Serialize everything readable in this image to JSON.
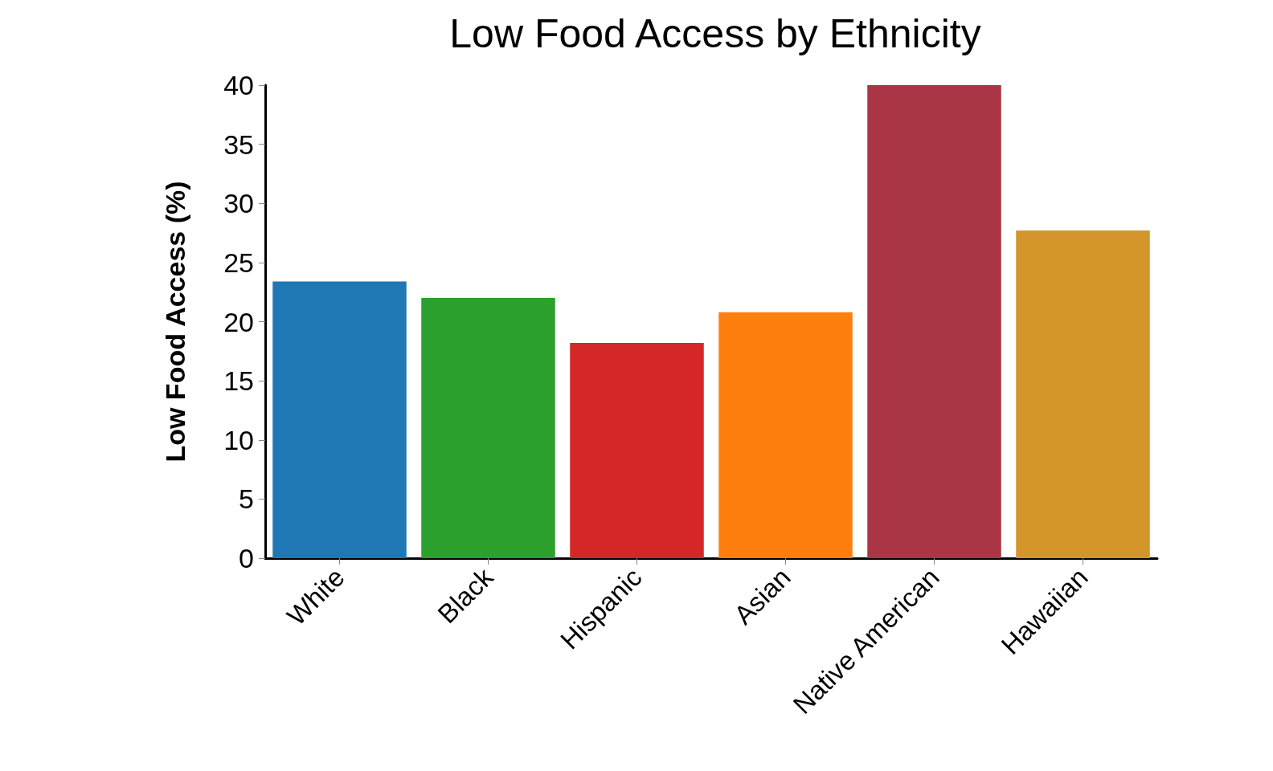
{
  "chart_data": {
    "type": "bar",
    "title": "Low Food Access by Ethnicity",
    "ylabel": "Low Food Access (%)",
    "categories": [
      "White",
      "Black",
      "Hispanic",
      "Asian",
      "Native American",
      "Hawaiian"
    ],
    "values": [
      23.4,
      22.0,
      18.2,
      20.8,
      40,
      27.7
    ],
    "colors": [
      "#1f77b4",
      "#2ca02c",
      "#d62728",
      "#ff7f0e",
      "#a93545",
      "#d4952a"
    ],
    "ylim": [
      0,
      40
    ],
    "yticks": [
      0,
      5,
      10,
      15,
      20,
      25,
      30,
      35,
      40
    ],
    "grid": false
  }
}
